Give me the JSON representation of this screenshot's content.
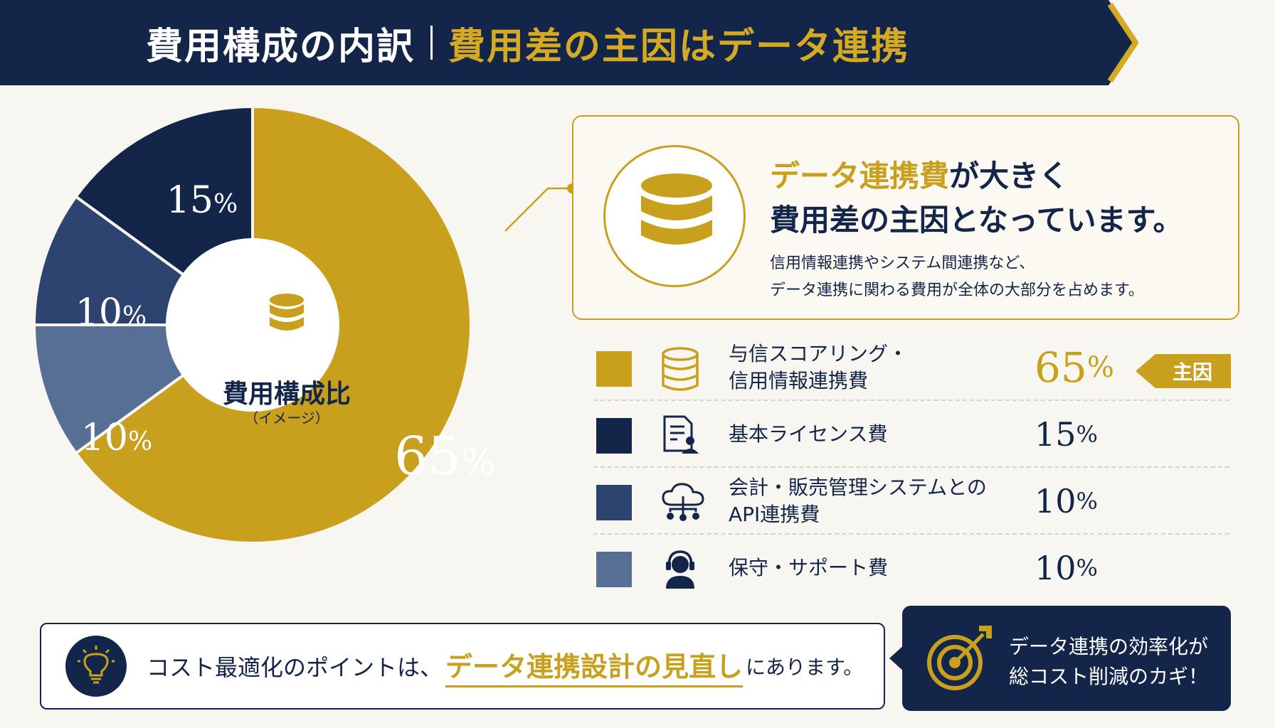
{
  "header": {
    "title_left": "費用構成の内訳",
    "title_right": "費用差の主因はデータ連携"
  },
  "colors": {
    "navy": "#13264a",
    "gold": "#c9a01e",
    "blue_dark": "#2e4470",
    "blue_mid": "#586f95",
    "background": "#f8f6f0"
  },
  "chart_data": {
    "type": "pie",
    "style": "donut",
    "center_title": "費用構成比",
    "center_subtitle": "（イメージ）",
    "categories": [
      "与信スコアリング・信用情報連携費",
      "基本ライセンス費",
      "会計・販売管理システムとのAPI連携費",
      "保守・サポート費"
    ],
    "values": [
      65,
      15,
      10,
      10
    ],
    "unit": "%",
    "slice_colors": [
      "#c9a01e",
      "#13264a",
      "#2e4470",
      "#586f95"
    ],
    "legend_placement": "right",
    "order_from_top_clockwise": [
      "与信スコアリング・信用情報連携費",
      "保守・サポート費",
      "会計・販売管理システムとのAPI連携費",
      "基本ライセンス費"
    ]
  },
  "pie_labels": [
    {
      "num": "65",
      "pct": "%"
    },
    {
      "num": "15",
      "pct": "%"
    },
    {
      "num": "10",
      "pct": "%"
    },
    {
      "num": "10",
      "pct": "%"
    }
  ],
  "callout": {
    "heading_highlight": "データ連携費",
    "heading_rest": "が大きく",
    "heading_line2": "費用差の主因となっています。",
    "body_line1": "信用情報連携やシステム間連携など、",
    "body_line2": "データ連携に関わる費用が全体の大部分を占めます。",
    "icon": "database-icon"
  },
  "legend": {
    "rows": [
      {
        "line1": "与信スコアリング・",
        "line2": "信用情報連携費",
        "num": "65",
        "pct": "%",
        "icon": "database-icon",
        "color": "#c9a01e"
      },
      {
        "line1": "基本ライセンス費",
        "line2": "",
        "num": "15",
        "pct": "%",
        "icon": "license-document-icon",
        "color": "#13264a"
      },
      {
        "line1": "会計・販売管理システムとの",
        "line2": "API連携費",
        "num": "10",
        "pct": "%",
        "icon": "cloud-network-icon",
        "color": "#2e4470"
      },
      {
        "line1": "保守・サポート費",
        "line2": "",
        "num": "10",
        "pct": "%",
        "icon": "headset-support-icon",
        "color": "#586f95"
      }
    ],
    "main_badge": "主因"
  },
  "bottom": {
    "text_before": "コスト最適化のポイントは、",
    "highlight": "データ連携設計の見直し",
    "text_after": "にあります。",
    "icon": "lightbulb-icon"
  },
  "key_box": {
    "line1": "データ連携の効率化が",
    "line2": "総コスト削減のカギ！",
    "icon": "target-icon"
  }
}
